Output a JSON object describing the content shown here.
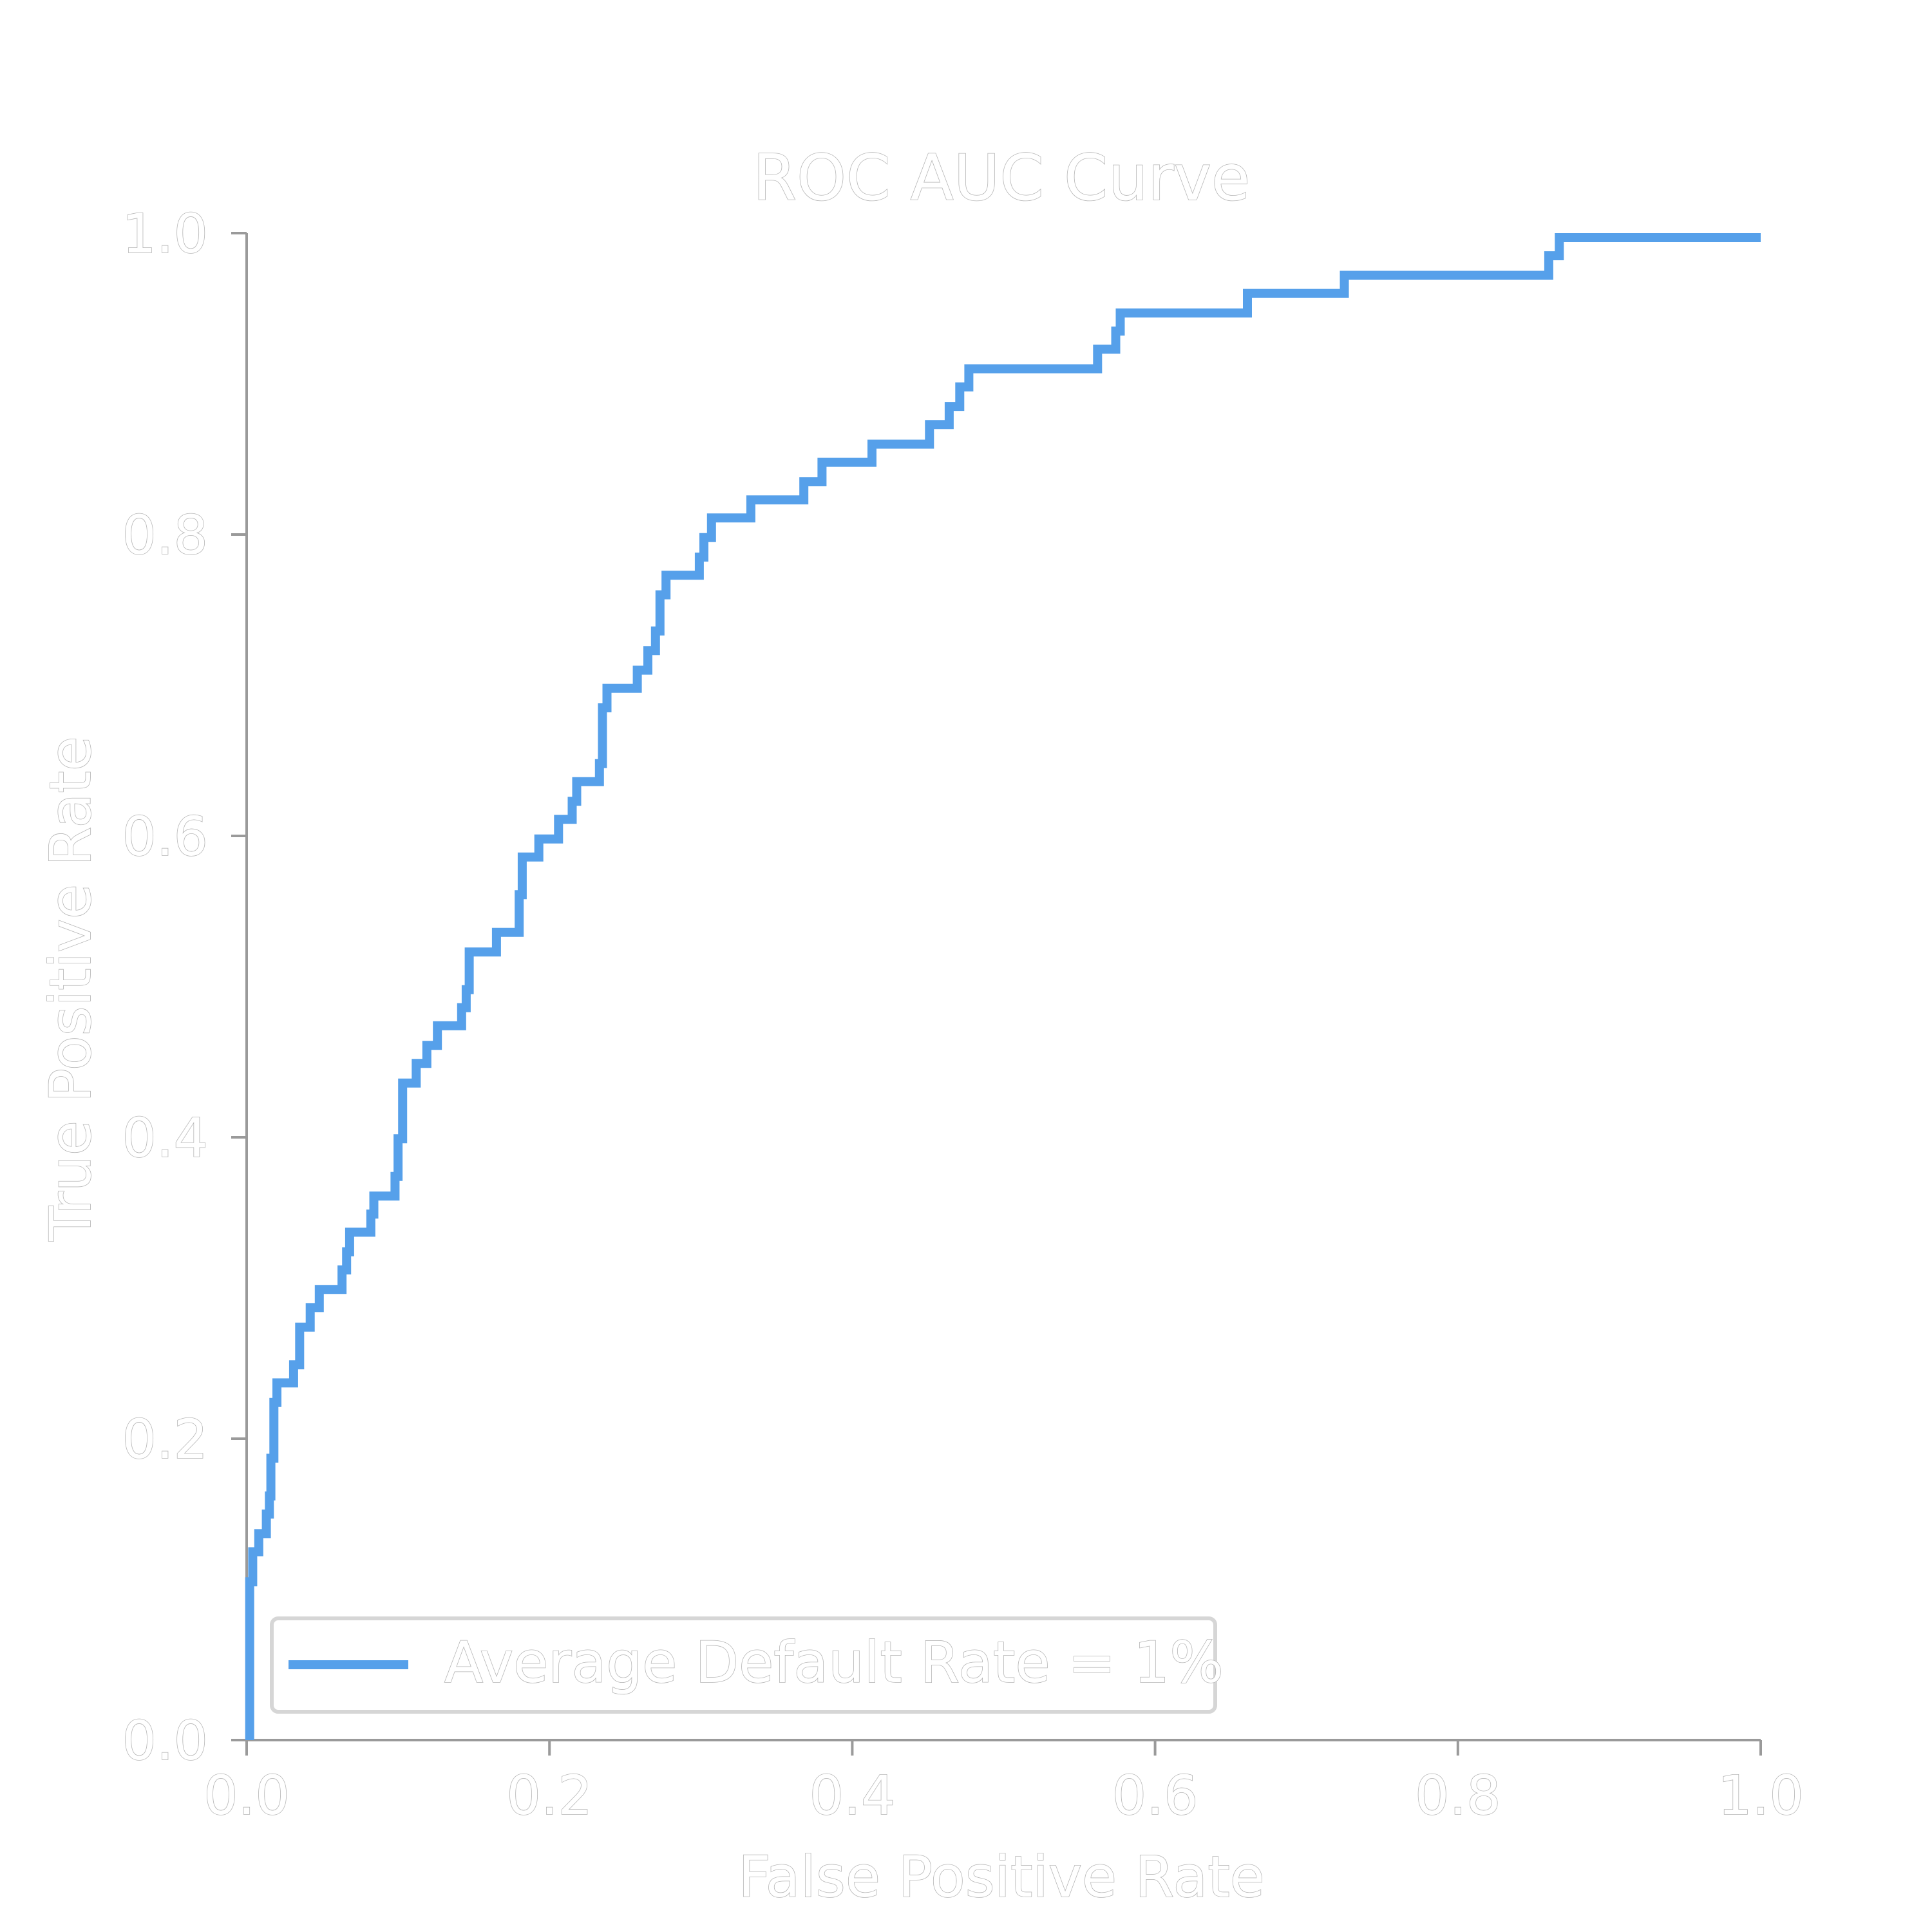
{
  "chart_data": {
    "type": "line",
    "title": "ROC AUC Curve",
    "xlabel": "False Positive Rate",
    "ylabel": "True Positive Rate",
    "xlim": [
      0.0,
      1.0
    ],
    "ylim": [
      0.0,
      1.0
    ],
    "xticks": [
      "0.0",
      "0.2",
      "0.4",
      "0.6",
      "0.8",
      "1.0"
    ],
    "yticks": [
      "0.0",
      "0.2",
      "0.4",
      "0.6",
      "0.8",
      "1.0"
    ],
    "grid": false,
    "legend_position": "lower-left",
    "series": [
      {
        "name": "Average Default Rate = 1%",
        "color": "#56a0ea",
        "x": [
          0.002,
          0.002,
          0.004,
          0.004,
          0.008,
          0.008,
          0.013,
          0.013,
          0.015,
          0.015,
          0.016,
          0.016,
          0.018,
          0.018,
          0.02,
          0.02,
          0.031,
          0.031,
          0.035,
          0.035,
          0.042,
          0.042,
          0.048,
          0.048,
          0.063,
          0.063,
          0.066,
          0.066,
          0.068,
          0.068,
          0.082,
          0.082,
          0.084,
          0.084,
          0.098,
          0.098,
          0.1,
          0.1,
          0.103,
          0.103,
          0.112,
          0.112,
          0.119,
          0.119,
          0.126,
          0.126,
          0.142,
          0.142,
          0.145,
          0.145,
          0.147,
          0.147,
          0.165,
          0.165,
          0.18,
          0.18,
          0.182,
          0.182,
          0.193,
          0.193,
          0.206,
          0.206,
          0.215,
          0.215,
          0.218,
          0.218,
          0.233,
          0.233,
          0.235,
          0.235,
          0.238,
          0.238,
          0.258,
          0.258,
          0.265,
          0.265,
          0.27,
          0.27,
          0.273,
          0.273,
          0.277,
          0.277,
          0.299,
          0.299,
          0.302,
          0.302,
          0.307,
          0.307,
          0.333,
          0.333,
          0.368,
          0.368,
          0.38,
          0.38,
          0.413,
          0.413,
          0.451,
          0.451,
          0.464,
          0.464,
          0.471,
          0.471,
          0.477,
          0.477,
          0.562,
          0.562,
          0.574,
          0.574,
          0.577,
          0.577,
          0.661,
          0.661,
          0.725,
          0.725,
          0.86,
          0.86,
          0.867,
          0.867,
          1.0
        ],
        "y": [
          0.0,
          0.105,
          0.105,
          0.125,
          0.125,
          0.137,
          0.137,
          0.15,
          0.15,
          0.162,
          0.162,
          0.187,
          0.187,
          0.224,
          0.224,
          0.237,
          0.237,
          0.249,
          0.249,
          0.274,
          0.274,
          0.287,
          0.287,
          0.299,
          0.299,
          0.312,
          0.312,
          0.324,
          0.324,
          0.337,
          0.337,
          0.349,
          0.349,
          0.361,
          0.361,
          0.374,
          0.374,
          0.399,
          0.399,
          0.436,
          0.436,
          0.449,
          0.449,
          0.461,
          0.461,
          0.474,
          0.474,
          0.486,
          0.486,
          0.498,
          0.498,
          0.523,
          0.523,
          0.536,
          0.536,
          0.561,
          0.561,
          0.586,
          0.586,
          0.598,
          0.598,
          0.611,
          0.611,
          0.623,
          0.623,
          0.636,
          0.636,
          0.648,
          0.648,
          0.685,
          0.685,
          0.698,
          0.698,
          0.71,
          0.71,
          0.723,
          0.723,
          0.736,
          0.736,
          0.76,
          0.76,
          0.773,
          0.773,
          0.785,
          0.785,
          0.798,
          0.798,
          0.811,
          0.811,
          0.823,
          0.823,
          0.835,
          0.835,
          0.848,
          0.848,
          0.86,
          0.86,
          0.873,
          0.873,
          0.885,
          0.885,
          0.898,
          0.898,
          0.91,
          0.91,
          0.923,
          0.923,
          0.935,
          0.935,
          0.947,
          0.947,
          0.96,
          0.96,
          0.972,
          0.972,
          0.985,
          0.985,
          0.997,
          0.997
        ]
      }
    ]
  }
}
